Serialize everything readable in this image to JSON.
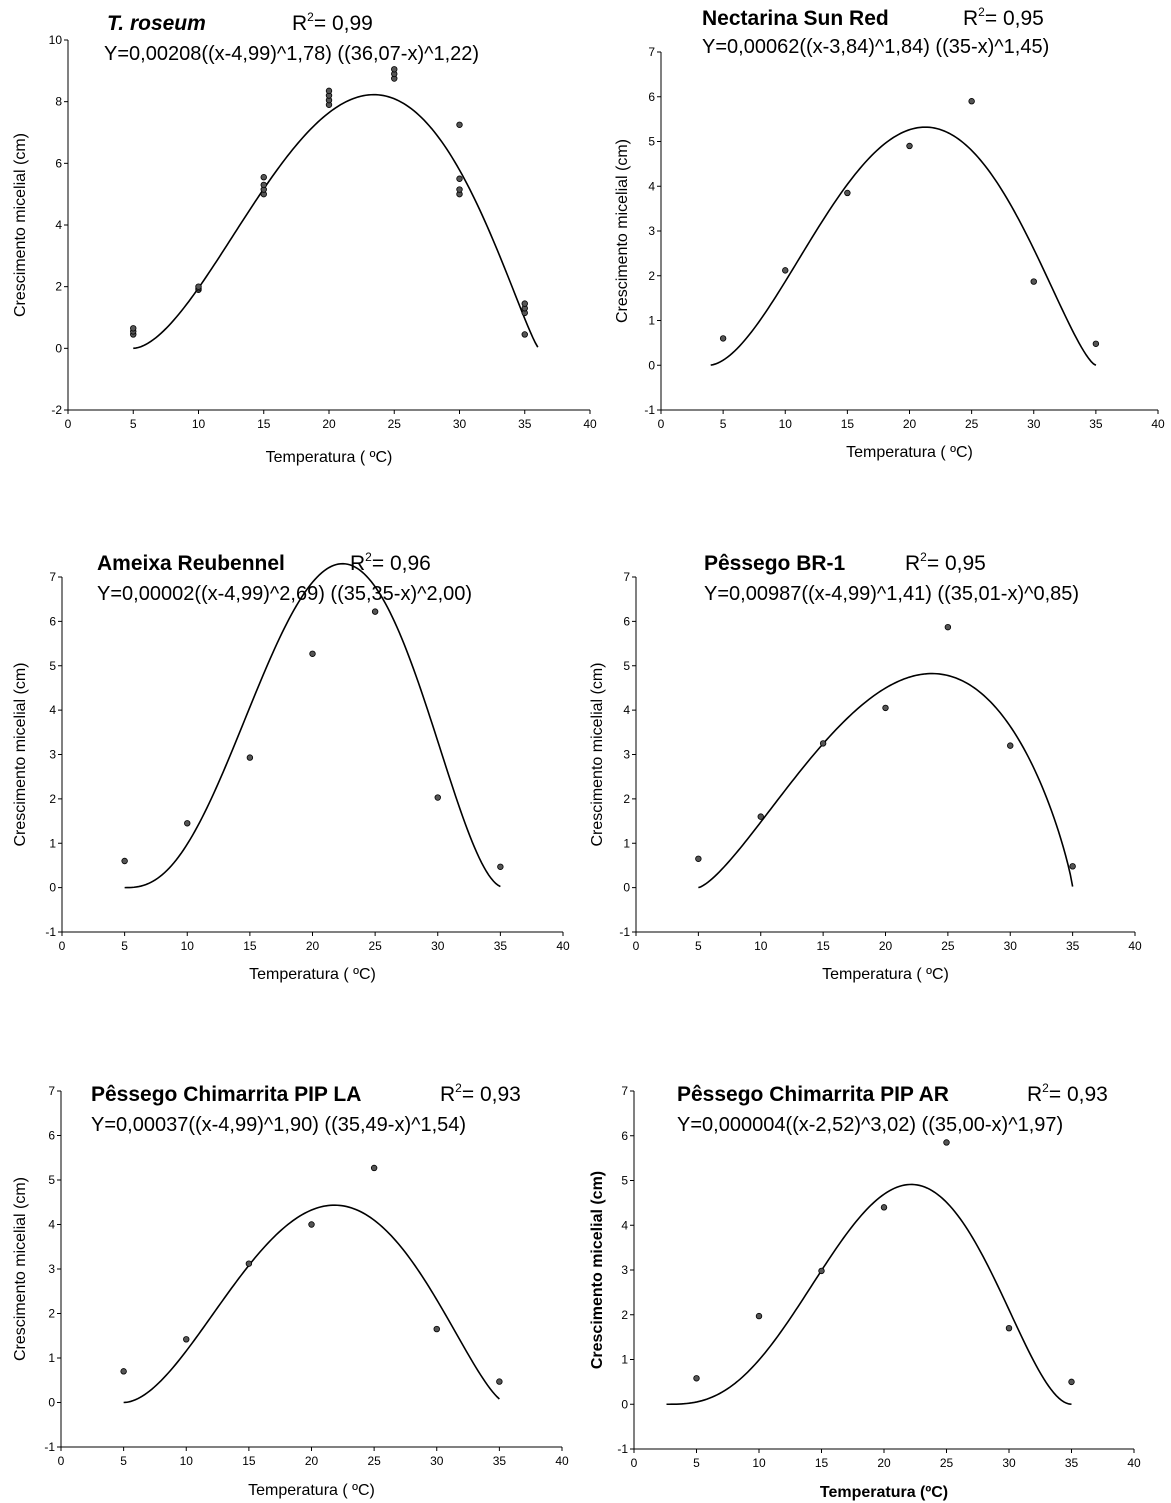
{
  "chart_data": [
    {
      "type": "scatter",
      "title": "T.  roseum",
      "title_italic": true,
      "r2_label": "R",
      "r2_value": "= 0,99",
      "equation": "Y=0,00208((x-4,99)^1,78) ((36,07-x)^1,22)",
      "xlabel": "Temperatura (  ºC)",
      "ylabel": "Crescimento micelial (cm)",
      "axis_labels_bold": false,
      "xlim": [
        0,
        40
      ],
      "ylim": [
        -2,
        10
      ],
      "xticks": [
        "0",
        "5",
        "10",
        "15",
        "20",
        "25",
        "30",
        "35",
        "40"
      ],
      "yticks": [
        "-2",
        "0",
        "2",
        "4",
        "6",
        "8",
        "10"
      ],
      "points": [
        [
          5,
          0.45
        ],
        [
          5,
          0.55
        ],
        [
          5,
          0.65
        ],
        [
          10,
          1.9
        ],
        [
          10,
          1.95
        ],
        [
          10,
          2.0
        ],
        [
          15,
          5.0
        ],
        [
          15,
          5.15
        ],
        [
          15,
          5.3
        ],
        [
          15,
          5.55
        ],
        [
          20,
          7.9
        ],
        [
          20,
          8.05
        ],
        [
          20,
          8.2
        ],
        [
          20,
          8.35
        ],
        [
          25,
          8.75
        ],
        [
          25,
          8.9
        ],
        [
          25,
          9.05
        ],
        [
          30,
          5.0
        ],
        [
          30,
          5.15
        ],
        [
          30,
          5.5
        ],
        [
          30,
          7.25
        ],
        [
          35,
          0.45
        ],
        [
          35,
          1.15
        ],
        [
          35,
          1.3
        ],
        [
          35,
          1.45
        ]
      ],
      "curve": {
        "a": 0.00208,
        "b": 4.99,
        "c": 1.78,
        "d": 36.07,
        "e": 1.22,
        "xmin": 5,
        "xmax": 36
      }
    },
    {
      "type": "scatter",
      "title": "Nectarina Sun Red",
      "title_italic": false,
      "r2_label": "R",
      "r2_value": "= 0,95",
      "equation": "Y=0,00062((x-3,84)^1,84)  ((35-x)^1,45)",
      "xlabel": "Temperatura (  ºC)",
      "ylabel": "Crescimento micelial (cm)",
      "axis_labels_bold": false,
      "xlim": [
        0,
        40
      ],
      "ylim": [
        -1,
        7
      ],
      "xticks": [
        "0",
        "5",
        "10",
        "15",
        "20",
        "25",
        "30",
        "35",
        "40"
      ],
      "yticks": [
        "-1",
        "0",
        "1",
        "2",
        "3",
        "4",
        "5",
        "6",
        "7"
      ],
      "points": [
        [
          5,
          0.6
        ],
        [
          10,
          2.12
        ],
        [
          15,
          3.85
        ],
        [
          20,
          4.9
        ],
        [
          25,
          5.9
        ],
        [
          30,
          1.87
        ],
        [
          35,
          0.48
        ]
      ],
      "curve": {
        "a": 0.00062,
        "b": 3.84,
        "c": 1.84,
        "d": 35,
        "e": 1.45,
        "xmin": 4,
        "xmax": 35
      }
    },
    {
      "type": "scatter",
      "title": "Ameixa Reubennel",
      "title_italic": false,
      "r2_label": "R",
      "r2_value": "= 0,96",
      "equation": "Y=0,00002((x-4,99)^2,69) ((35,35-x)^2,00)",
      "xlabel": "Temperatura (  ºC)",
      "ylabel": "Crescimento micelial (cm)",
      "axis_labels_bold": false,
      "xlim": [
        0,
        40
      ],
      "ylim": [
        -1,
        7
      ],
      "xticks": [
        "0",
        "5",
        "10",
        "15",
        "20",
        "25",
        "30",
        "35",
        "40"
      ],
      "yticks": [
        "-1",
        "0",
        "1",
        "2",
        "3",
        "4",
        "5",
        "6",
        "7"
      ],
      "points": [
        [
          5,
          0.6
        ],
        [
          10,
          1.45
        ],
        [
          15,
          2.93
        ],
        [
          20,
          5.27
        ],
        [
          25,
          6.22
        ],
        [
          30,
          2.03
        ],
        [
          35,
          0.47
        ]
      ],
      "curve": {
        "a": 2e-05,
        "b": 4.99,
        "c": 2.69,
        "d": 35.35,
        "e": 2.0,
        "xmin": 5,
        "xmax": 35
      }
    },
    {
      "type": "scatter",
      "title": "Pêssego BR-1",
      "title_italic": false,
      "r2_label": "R",
      "r2_value": "= 0,95",
      "equation": "Y=0,00987((x-4,99)^1,41) ((35,01-x)^0,85)",
      "xlabel": "Temperatura (  ºC)",
      "ylabel": "Crescimento micelial (cm)",
      "axis_labels_bold": false,
      "xlim": [
        0,
        40
      ],
      "ylim": [
        -1,
        7
      ],
      "xticks": [
        "0",
        "5",
        "10",
        "15",
        "20",
        "25",
        "30",
        "35",
        "40"
      ],
      "yticks": [
        "-1",
        "0",
        "1",
        "2",
        "3",
        "4",
        "5",
        "6",
        "7"
      ],
      "points": [
        [
          5,
          0.65
        ],
        [
          10,
          1.6
        ],
        [
          15,
          3.25
        ],
        [
          20,
          4.05
        ],
        [
          25,
          5.87
        ],
        [
          30,
          3.2
        ],
        [
          35,
          0.48
        ]
      ],
      "curve": {
        "a": 0.00987,
        "b": 4.99,
        "c": 1.41,
        "d": 35.01,
        "e": 0.85,
        "xmin": 5,
        "xmax": 35
      }
    },
    {
      "type": "scatter",
      "title": "Pêssego Chimarrita PIP LA",
      "title_italic": false,
      "r2_label": "R",
      "r2_value": "= 0,93",
      "equation": "Y=0,00037((x-4,99)^1,90) ((35,49-x)^1,54)",
      "xlabel": "Temperatura (  ºC)",
      "ylabel": "Crescimento micelial (cm)",
      "axis_labels_bold": false,
      "xlim": [
        0,
        40
      ],
      "ylim": [
        -1,
        7
      ],
      "xticks": [
        "0",
        "5",
        "10",
        "15",
        "20",
        "25",
        "30",
        "35",
        "40"
      ],
      "yticks": [
        "-1",
        "0",
        "1",
        "2",
        "3",
        "4",
        "5",
        "6",
        "7"
      ],
      "points": [
        [
          5,
          0.7
        ],
        [
          10,
          1.42
        ],
        [
          15,
          3.12
        ],
        [
          20,
          4.0
        ],
        [
          25,
          5.27
        ],
        [
          30,
          1.65
        ],
        [
          35,
          0.47
        ]
      ],
      "curve": {
        "a": 0.00037,
        "b": 4.99,
        "c": 1.9,
        "d": 35.49,
        "e": 1.54,
        "xmin": 5,
        "xmax": 35
      }
    },
    {
      "type": "scatter",
      "title": "Pêssego Chimarrita PIP AR",
      "title_italic": false,
      "r2_label": "R",
      "r2_value": "= 0,93",
      "equation": "Y=0,000004((x-2,52)^3,02)  ((35,00-x)^1,97)",
      "xlabel": "Temperatura (ºC)",
      "ylabel": "Crescimento micelial (cm)",
      "axis_labels_bold": true,
      "xlim": [
        0,
        40
      ],
      "ylim": [
        -1,
        7
      ],
      "xticks": [
        "0",
        "5",
        "10",
        "15",
        "20",
        "25",
        "30",
        "35",
        "40"
      ],
      "yticks": [
        "-1",
        "0",
        "1",
        "2",
        "3",
        "4",
        "5",
        "6",
        "7"
      ],
      "points": [
        [
          5,
          0.58
        ],
        [
          10,
          1.97
        ],
        [
          15,
          2.98
        ],
        [
          20,
          4.4
        ],
        [
          25,
          5.85
        ],
        [
          30,
          1.7
        ],
        [
          35,
          0.5
        ]
      ],
      "curve": {
        "a": 4e-06,
        "b": 2.52,
        "c": 3.02,
        "d": 35.0,
        "e": 1.97,
        "xmin": 2.6,
        "xmax": 35
      }
    }
  ]
}
